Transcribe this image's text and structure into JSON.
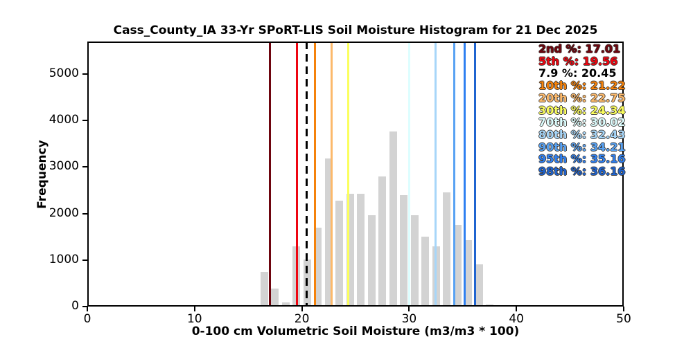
{
  "chart_data": {
    "type": "bar",
    "title": "Cass_County_IA 33-Yr SPoRT-LIS Soil Moisture Histogram for 21 Dec 2025",
    "xlabel": "0-100 cm Volumetric Soil Moisture (m3/m3 * 100)",
    "ylabel": "Frequency",
    "xlim": [
      0,
      50
    ],
    "ylim": [
      0,
      5700
    ],
    "x_ticks": [
      0,
      10,
      20,
      30,
      40,
      50
    ],
    "y_ticks": [
      0,
      1000,
      2000,
      3000,
      4000,
      5000
    ],
    "grid": false,
    "bar_color": "#d3d3d3",
    "bar_width": 0.72,
    "bin_centers": [
      16.5,
      17.5,
      18.5,
      19.5,
      20.5,
      21.5,
      22.5,
      23.5,
      24.5,
      25.5,
      26.5,
      27.5,
      28.5,
      29.5,
      30.5,
      31.5,
      32.5,
      33.5,
      34.5,
      35.5,
      36.5,
      37.5
    ],
    "frequencies": [
      740,
      390,
      90,
      1290,
      1015,
      1695,
      3190,
      2280,
      2430,
      2430,
      1970,
      2805,
      3770,
      2390,
      1970,
      1510,
      1295,
      2455,
      1760,
      1425,
      905,
      45
    ],
    "legend_position": "upper right",
    "percentile_lines": [
      {
        "label": "2nd %",
        "value_text": "17.01",
        "value": 17.01,
        "color": "#6e040e",
        "style": "solid"
      },
      {
        "label": "5th %",
        "value_text": "19.56",
        "value": 19.56,
        "color": "#ee0511",
        "style": "solid"
      },
      {
        "label": "7.9 %",
        "value_text": "20.45",
        "value": 20.45,
        "color": "#000000",
        "style": "dashed"
      },
      {
        "label": "10th %",
        "value_text": "21.22",
        "value": 21.22,
        "color": "#f5820b",
        "style": "solid"
      },
      {
        "label": "20th %",
        "value_text": "22.75",
        "value": 22.75,
        "color": "#fcb96b",
        "style": "solid"
      },
      {
        "label": "30th %",
        "value_text": "24.34",
        "value": 24.34,
        "color": "#fbff5e",
        "style": "solid"
      },
      {
        "label": "70th %",
        "value_text": "30.02",
        "value": 30.02,
        "color": "#ddfeff",
        "style": "solid"
      },
      {
        "label": "80th %",
        "value_text": "32.43",
        "value": 32.43,
        "color": "#a7d6f9",
        "style": "solid"
      },
      {
        "label": "90th %",
        "value_text": "34.21",
        "value": 34.21,
        "color": "#58a2f3",
        "style": "solid"
      },
      {
        "label": "95th %",
        "value_text": "35.16",
        "value": 35.16,
        "color": "#2f80f1",
        "style": "solid"
      },
      {
        "label": "98th %",
        "value_text": "36.16",
        "value": 36.16,
        "color": "#1f64d0",
        "style": "solid"
      }
    ]
  }
}
